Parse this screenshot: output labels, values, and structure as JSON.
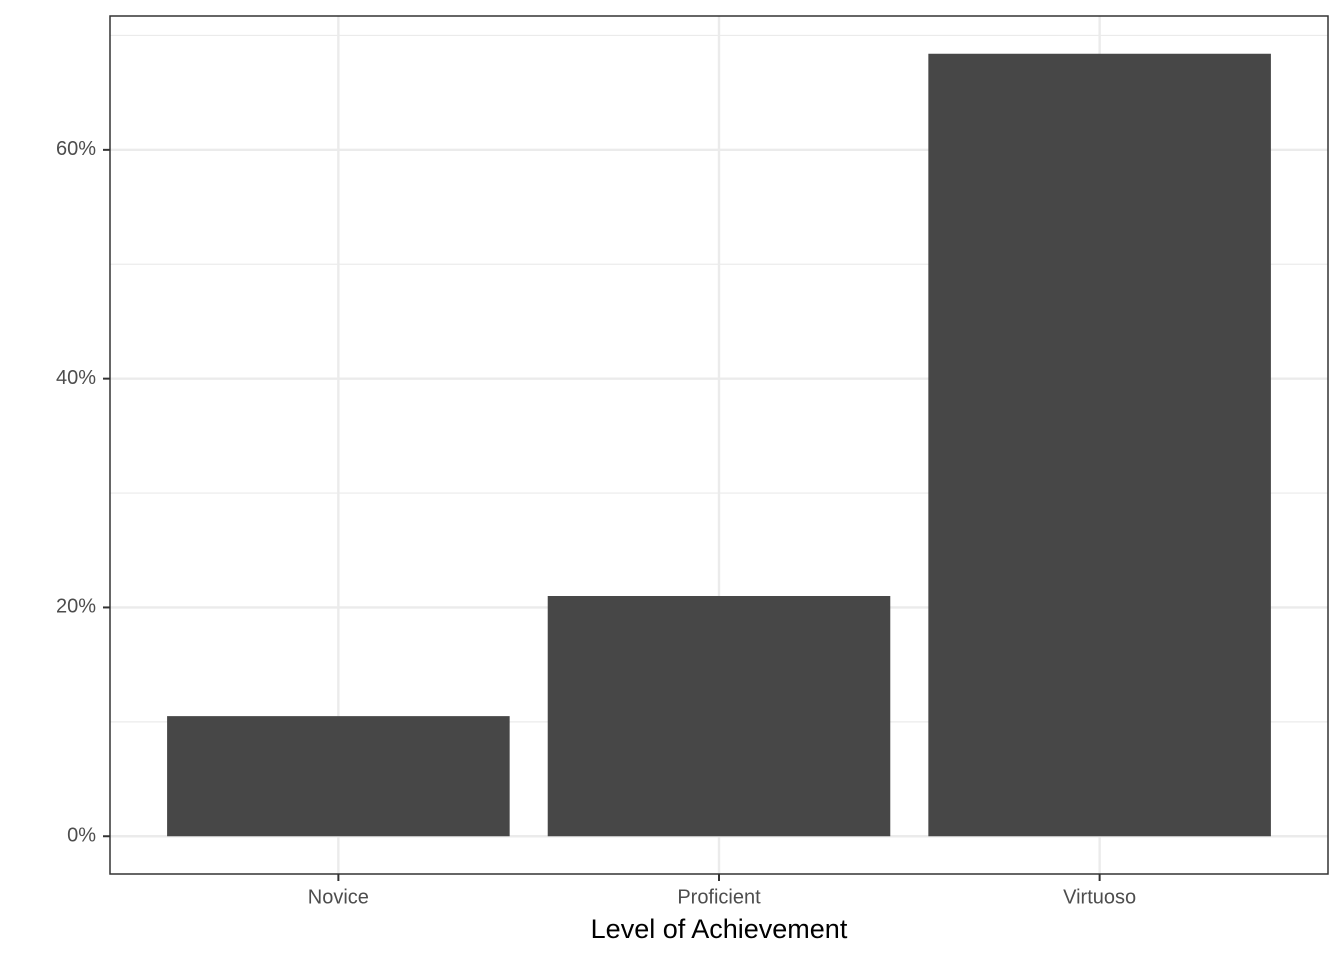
{
  "chart_data": {
    "type": "bar",
    "x_label": "Level of Achievement",
    "categories": [
      "Novice",
      "Proficient",
      "Virtuoso"
    ],
    "values": [
      10.5,
      21.0,
      68.4
    ],
    "color": "#474747",
    "ylim": [
      -3.3,
      71.7
    ],
    "yticks": [
      {
        "value": 0,
        "label": "0%"
      },
      {
        "value": 20,
        "label": "20%"
      },
      {
        "value": 40,
        "label": "40%"
      },
      {
        "value": 60,
        "label": "60%"
      }
    ],
    "yminorticks": [
      10,
      30,
      50,
      70
    ],
    "grid": true
  }
}
